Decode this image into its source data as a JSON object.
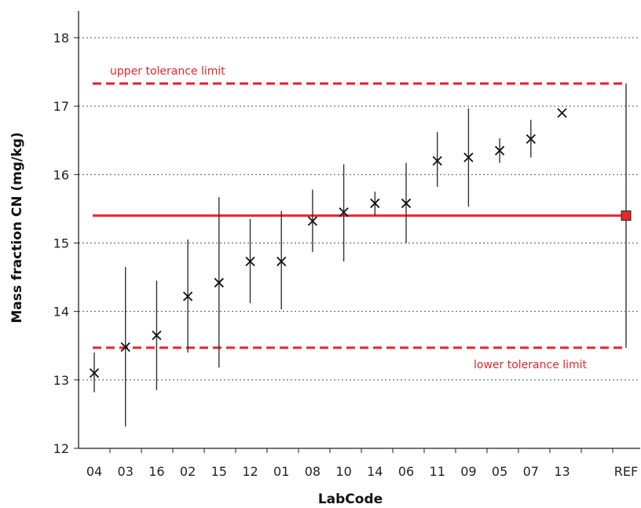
{
  "chart_data": {
    "type": "scatter",
    "xlabel": "LabCode",
    "ylabel": "Mass fraction CN (mg/kg)",
    "ylim": [
      12,
      18
    ],
    "yticks": [
      12,
      13,
      14,
      15,
      16,
      17,
      18
    ],
    "grid": "horizontal-dotted",
    "categories": [
      "04",
      "03",
      "16",
      "02",
      "15",
      "12",
      "01",
      "08",
      "10",
      "14",
      "06",
      "11",
      "09",
      "05",
      "07",
      "13",
      "REF"
    ],
    "points": [
      {
        "lab": "04",
        "value": 13.1,
        "low": 12.82,
        "high": 13.4
      },
      {
        "lab": "03",
        "value": 13.48,
        "low": 12.32,
        "high": 14.65
      },
      {
        "lab": "16",
        "value": 13.65,
        "low": 12.85,
        "high": 14.45
      },
      {
        "lab": "02",
        "value": 14.22,
        "low": 13.4,
        "high": 15.05
      },
      {
        "lab": "15",
        "value": 14.42,
        "low": 13.18,
        "high": 15.67
      },
      {
        "lab": "12",
        "value": 14.73,
        "low": 14.12,
        "high": 15.35
      },
      {
        "lab": "01",
        "value": 14.73,
        "low": 14.03,
        "high": 15.47
      },
      {
        "lab": "08",
        "value": 15.32,
        "low": 14.87,
        "high": 15.78
      },
      {
        "lab": "10",
        "value": 15.45,
        "low": 14.73,
        "high": 16.15
      },
      {
        "lab": "14",
        "value": 15.58,
        "low": 15.4,
        "high": 15.75
      },
      {
        "lab": "06",
        "value": 15.58,
        "low": 15.0,
        "high": 16.17
      },
      {
        "lab": "11",
        "value": 16.2,
        "low": 15.82,
        "high": 16.62
      },
      {
        "lab": "09",
        "value": 16.25,
        "low": 15.53,
        "high": 16.97
      },
      {
        "lab": "05",
        "value": 16.35,
        "low": 16.17,
        "high": 16.53
      },
      {
        "lab": "07",
        "value": 16.52,
        "low": 16.25,
        "high": 16.8
      },
      {
        "lab": "13",
        "value": 16.9,
        "low": 16.9,
        "high": 16.9
      }
    ],
    "reference": {
      "lab": "REF",
      "value": 15.4,
      "low": 13.47,
      "high": 17.33,
      "marker": "square",
      "color": "#e8262b"
    },
    "reference_line": {
      "value": 15.4,
      "color": "#e8262b"
    },
    "tolerance": {
      "upper": 17.33,
      "lower": 13.47,
      "upper_label": "upper tolerance limit",
      "lower_label": "lower tolerance limit",
      "color": "#e8262b",
      "style": "dashed"
    },
    "colors": {
      "marker": "#111111",
      "errorbar": "#333333",
      "grid": "#555555"
    }
  }
}
